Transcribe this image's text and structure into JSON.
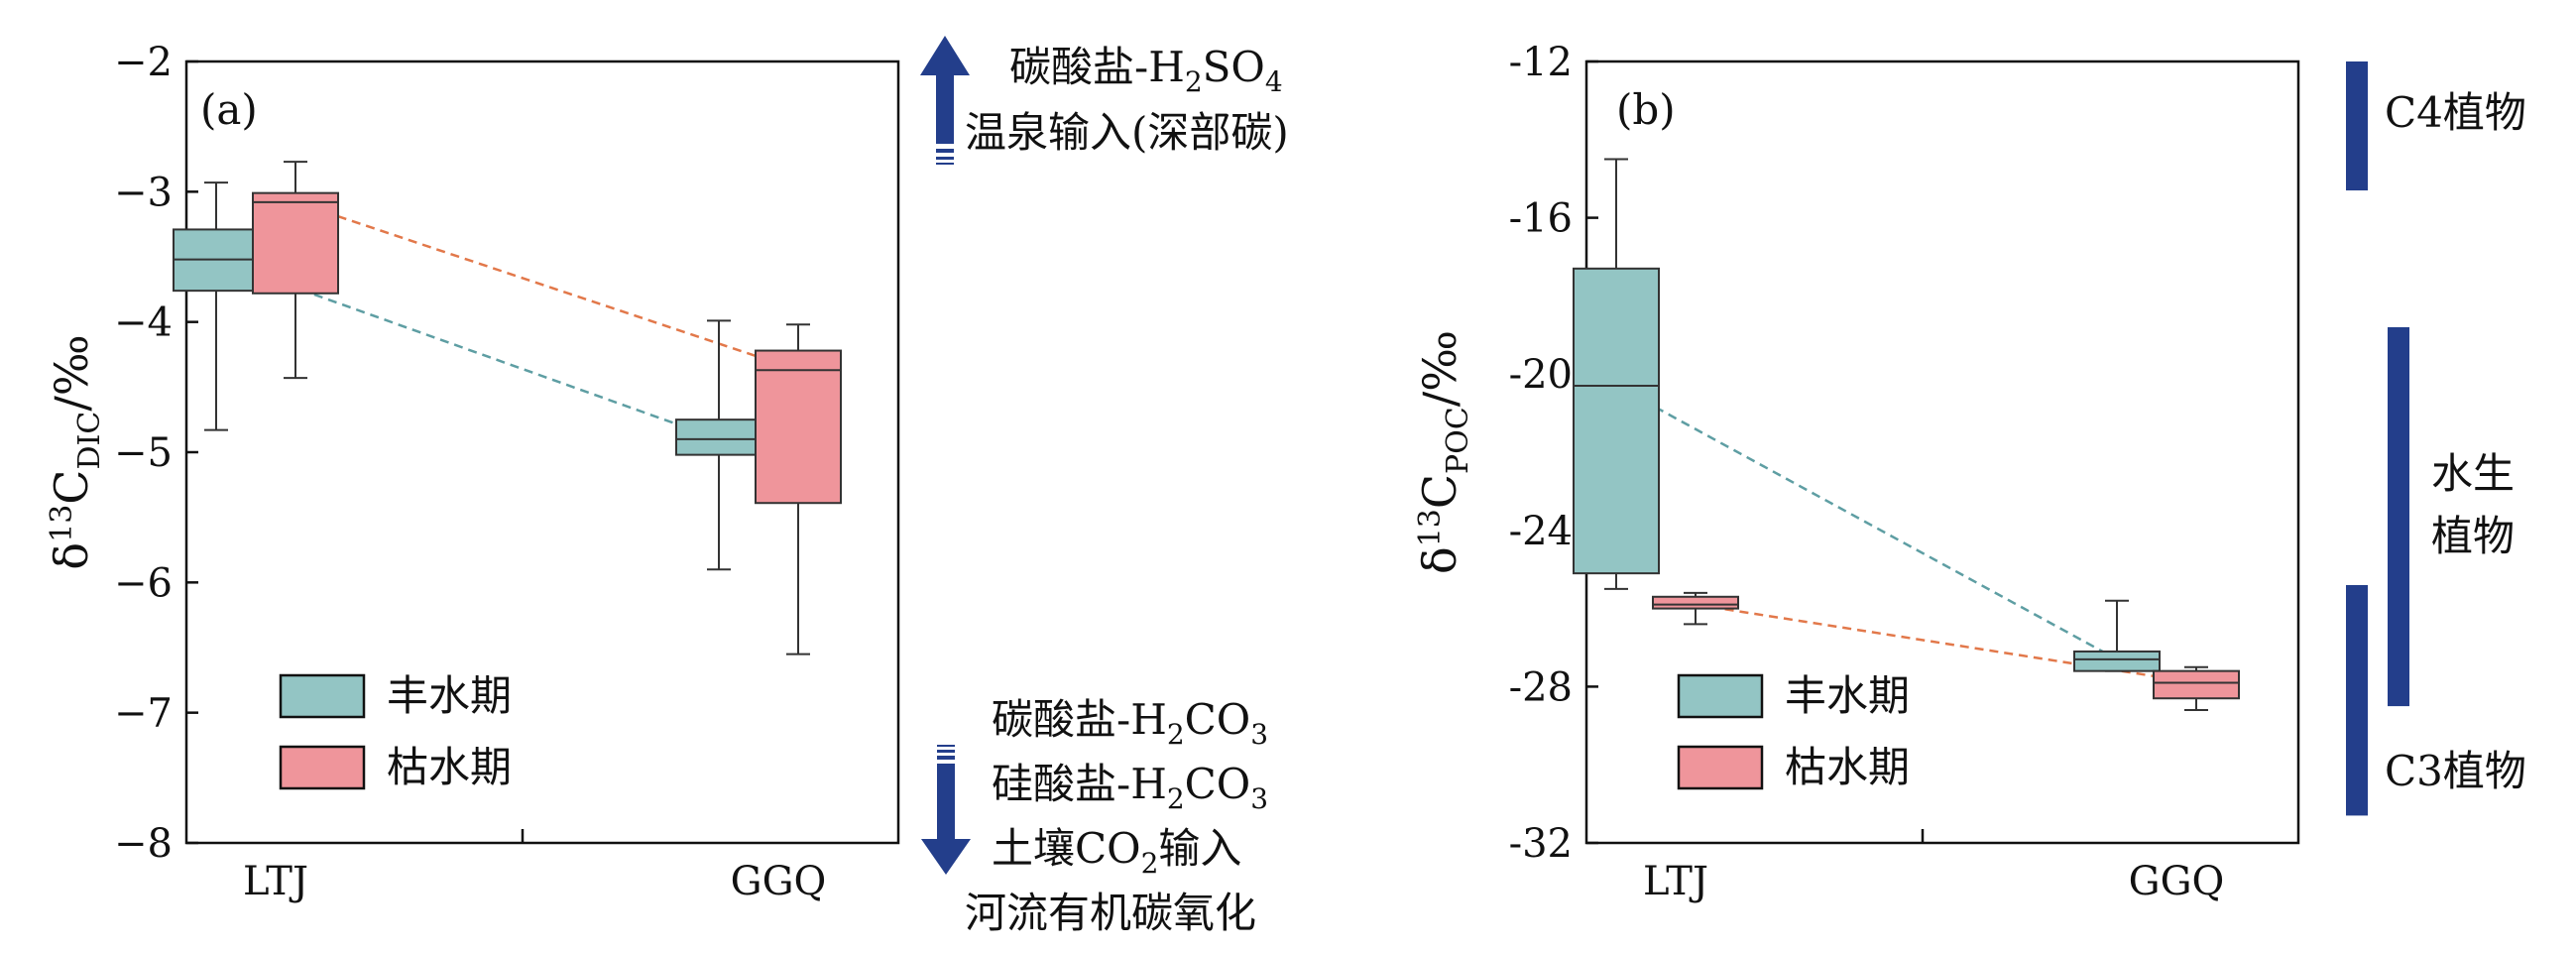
{
  "chart_data": [
    {
      "type": "box",
      "panel_label": "(a)",
      "ylabel": {
        "prefix": "δ",
        "sup": "13",
        "main": "C",
        "sub": "DIC",
        "suffix": "/‰"
      },
      "ylim": [
        -8,
        -2
      ],
      "yticks": [
        "−2",
        "−3",
        "−4",
        "−5",
        "−6",
        "−7",
        "−8"
      ],
      "ytick_values": [
        -2,
        -3,
        -4,
        -5,
        -6,
        -7,
        -8
      ],
      "categories": [
        "LTJ",
        "GGQ"
      ],
      "series": [
        {
          "name": "丰水期",
          "color": "#93c5c4",
          "line_color": "#5e9ea3",
          "boxes": [
            {
              "min": -4.83,
              "q1": -3.76,
              "median": -3.52,
              "q3": -3.29,
              "max": -2.93
            },
            {
              "min": -5.9,
              "q1": -5.02,
              "median": -4.9,
              "q3": -4.75,
              "max": -3.99
            }
          ]
        },
        {
          "name": "枯水期",
          "color": "#ef959b",
          "line_color": "#e2784a",
          "boxes": [
            {
              "min": -4.43,
              "q1": -3.78,
              "median": -3.08,
              "q3": -3.01,
              "max": -2.77
            },
            {
              "min": -6.55,
              "q1": -5.39,
              "median": -4.37,
              "q3": -4.22,
              "max": -4.02
            }
          ]
        }
      ],
      "annotations": {
        "up": {
          "line1_pre": "碳酸盐-H",
          "line1_sub1": "2",
          "line1_mid": "SO",
          "line1_sub2": "4",
          "line2": "温泉输入(深部碳)"
        },
        "down": [
          {
            "pre": "碳酸盐-H",
            "sub": "2",
            "post": "CO",
            "sub2": "3"
          },
          {
            "pre": "硅酸盐-H",
            "sub": "2",
            "post": "CO",
            "sub2": "3"
          },
          {
            "pre": "土壤CO",
            "sub": "2",
            "post": "输入",
            "sub2": ""
          },
          {
            "pre": "河流有机碳氧化",
            "sub": "",
            "post": "",
            "sub2": ""
          }
        ]
      }
    },
    {
      "type": "box",
      "panel_label": "(b)",
      "ylabel": {
        "prefix": "δ",
        "sup": "13",
        "main": "C",
        "sub": "POC",
        "suffix": "/‰"
      },
      "ylim": [
        -32,
        -12
      ],
      "yticks": [
        "-12",
        "-16",
        "-20",
        "-24",
        "-28",
        "-32"
      ],
      "ytick_values": [
        -12,
        -16,
        -20,
        -24,
        -28,
        -32
      ],
      "categories": [
        "LTJ",
        "GGQ"
      ],
      "series": [
        {
          "name": "丰水期",
          "color": "#93c5c4",
          "line_color": "#5e9ea3",
          "boxes": [
            {
              "min": -25.5,
              "q1": -25.1,
              "median": -20.3,
              "q3": -17.3,
              "max": -14.5
            },
            {
              "min": -27.6,
              "q1": -27.6,
              "median": -27.3,
              "q3": -27.1,
              "max": -25.8
            }
          ]
        },
        {
          "name": "枯水期",
          "color": "#ef959b",
          "line_color": "#e2784a",
          "boxes": [
            {
              "min": -26.4,
              "q1": -26.0,
              "median": -25.9,
              "q3": -25.7,
              "max": -25.6
            },
            {
              "min": -28.6,
              "q1": -28.3,
              "median": -27.9,
              "q3": -27.6,
              "max": -27.5
            }
          ]
        }
      ],
      "ranges": [
        {
          "label": "C4植物",
          "from": -12,
          "to": -15.3
        },
        {
          "label_line1": "水生",
          "label_line2": "植物",
          "from": -18.8,
          "to": -28.5
        },
        {
          "label": "C3植物",
          "from": -25.4,
          "to": -31.3
        }
      ],
      "range_color": "#233e8b"
    }
  ]
}
